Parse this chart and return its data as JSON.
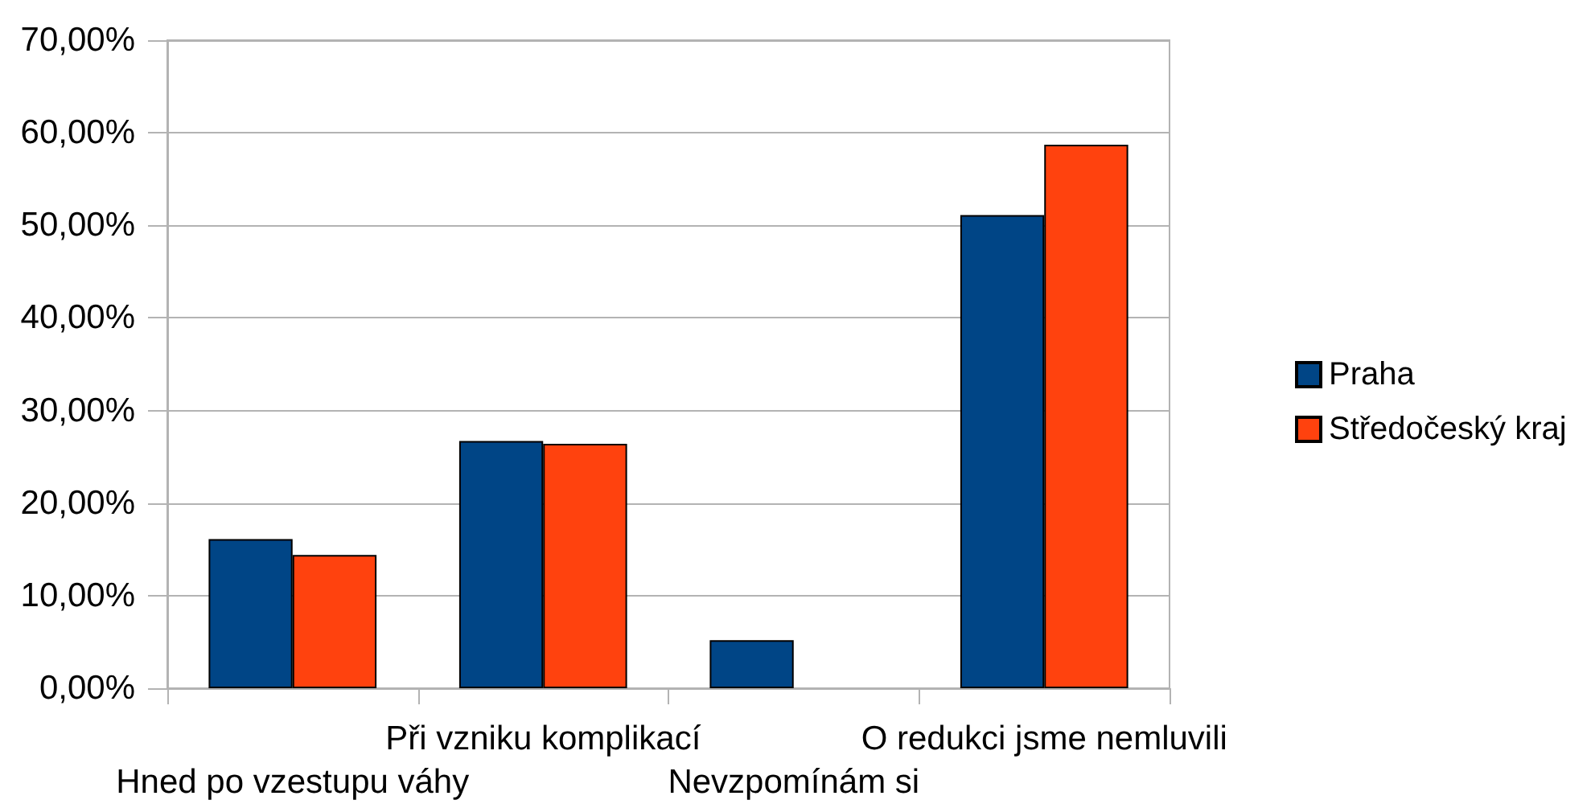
{
  "chart_data": {
    "type": "bar",
    "categories": [
      "Hned po vzestupu váhy",
      "Při vzniku komplikací",
      "Nevzpomínám si",
      "O redukci jsme nemluvili"
    ],
    "series": [
      {
        "name": "Praha",
        "color": "#004586",
        "values": [
          16.1,
          26.7,
          5.2,
          51.1
        ]
      },
      {
        "name": "Středočeský kraj",
        "color": "#ff420e",
        "values": [
          14.4,
          26.4,
          null,
          58.7
        ]
      }
    ],
    "ylim": [
      0,
      70
    ],
    "yticks": [
      {
        "value": 0,
        "label": "0,00%"
      },
      {
        "value": 10,
        "label": "10,00%"
      },
      {
        "value": 20,
        "label": "20,00%"
      },
      {
        "value": 30,
        "label": "30,00%"
      },
      {
        "value": 40,
        "label": "40,00%"
      },
      {
        "value": 50,
        "label": "50,00%"
      },
      {
        "value": 60,
        "label": "60,00%"
      },
      {
        "value": 70,
        "label": "70,00%"
      }
    ],
    "grid": "y",
    "legend": "right"
  }
}
